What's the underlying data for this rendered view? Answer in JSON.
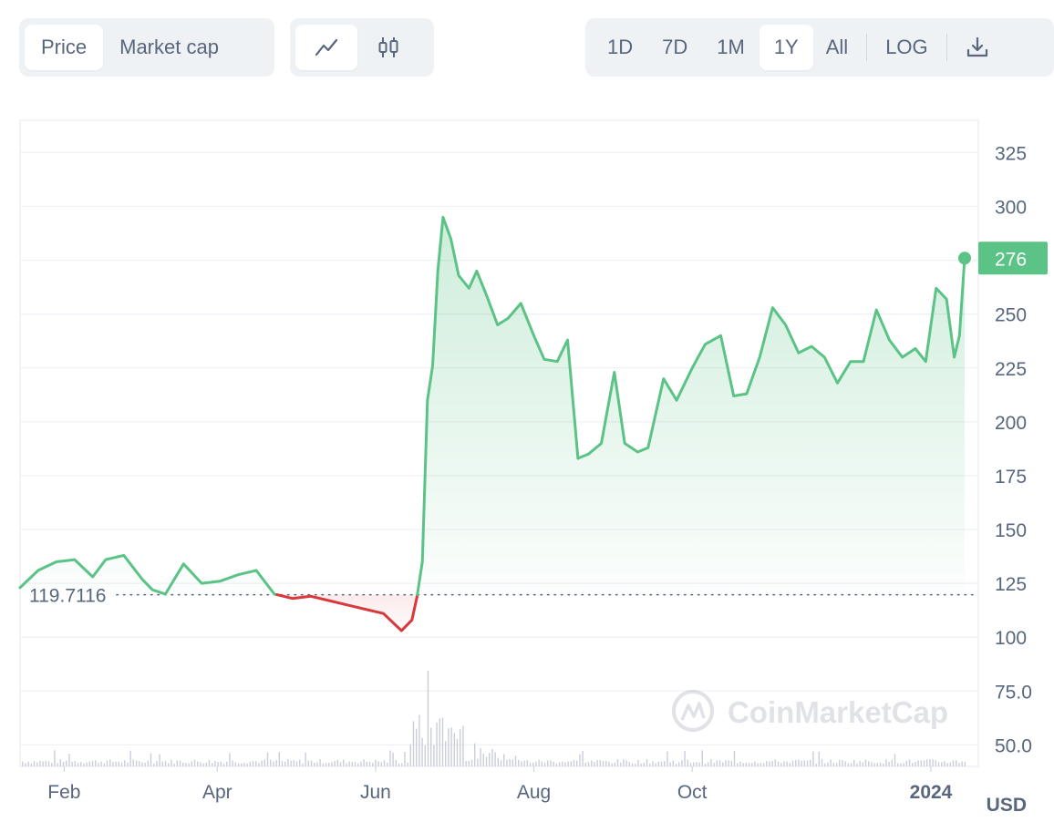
{
  "toolbar": {
    "data_type_tabs": [
      {
        "label": "Price",
        "active": true
      },
      {
        "label": "Market cap",
        "active": false
      }
    ],
    "chart_style_buttons": [
      {
        "icon": "line-chart-icon",
        "active": true
      },
      {
        "icon": "candlestick-icon",
        "active": false
      }
    ],
    "range_tabs": [
      {
        "label": "1D",
        "active": false
      },
      {
        "label": "7D",
        "active": false
      },
      {
        "label": "1M",
        "active": false
      },
      {
        "label": "1Y",
        "active": true
      },
      {
        "label": "All",
        "active": false
      }
    ],
    "log_label": "LOG",
    "download_icon": "download-icon"
  },
  "watermark": {
    "text": "CoinMarketCap",
    "icon": "coinmarketcap-logo-icon"
  },
  "currency_label": "USD",
  "colors": {
    "up": "#5bc386",
    "down": "#d9393c",
    "grid": "#eef1f5",
    "text": "#58667e",
    "badge_bg": "#5bc386"
  },
  "chart_data": {
    "type": "area",
    "x_tick_labels": [
      "Feb",
      "Apr",
      "Jun",
      "Aug",
      "Oct",
      "2024"
    ],
    "y_tick_labels": [
      "325",
      "300",
      "250",
      "225",
      "200",
      "175",
      "150",
      "125",
      "100",
      "75.0",
      "50.0"
    ],
    "ylim": [
      40,
      340
    ],
    "baseline": {
      "value": 119.7116,
      "label": "119.7116"
    },
    "current_value": {
      "value": 276,
      "label": "276"
    },
    "x_range": [
      "2023-01-15",
      "2024-01-14"
    ],
    "series": [
      {
        "x": [
          "2023-01-15",
          "2023-01-22",
          "2023-01-29",
          "2023-02-05",
          "2023-02-12",
          "2023-02-17",
          "2023-02-24",
          "2023-03-03",
          "2023-03-07",
          "2023-03-12",
          "2023-03-19",
          "2023-03-26",
          "2023-04-02",
          "2023-04-09",
          "2023-04-16",
          "2023-04-23",
          "2023-04-30",
          "2023-05-07",
          "2023-05-14",
          "2023-05-21",
          "2023-05-28",
          "2023-06-04",
          "2023-06-11",
          "2023-06-15",
          "2023-06-17",
          "2023-06-19",
          "2023-06-21",
          "2023-06-23",
          "2023-06-25",
          "2023-06-27",
          "2023-06-30",
          "2023-07-03",
          "2023-07-07",
          "2023-07-10",
          "2023-07-14",
          "2023-07-18",
          "2023-07-22",
          "2023-07-27",
          "2023-08-01",
          "2023-08-05",
          "2023-08-10",
          "2023-08-14",
          "2023-08-18",
          "2023-08-22",
          "2023-08-27",
          "2023-09-01",
          "2023-09-05",
          "2023-09-10",
          "2023-09-14",
          "2023-09-20",
          "2023-09-25",
          "2023-10-01",
          "2023-10-06",
          "2023-10-12",
          "2023-10-17",
          "2023-10-22",
          "2023-10-27",
          "2023-11-01",
          "2023-11-06",
          "2023-11-11",
          "2023-11-16",
          "2023-11-21",
          "2023-11-26",
          "2023-12-01",
          "2023-12-06",
          "2023-12-11",
          "2023-12-16",
          "2023-12-21",
          "2023-12-26",
          "2023-12-30",
          "2024-01-03",
          "2024-01-07",
          "2024-01-10",
          "2024-01-12",
          "2024-01-14"
        ],
        "y": [
          123,
          131,
          135,
          136,
          128,
          136,
          138,
          127,
          122,
          120,
          134,
          125,
          126,
          129,
          131,
          120,
          118,
          119,
          117,
          115,
          113,
          111,
          103,
          108,
          119,
          135,
          210,
          226,
          270,
          295,
          285,
          268,
          262,
          270,
          258,
          245,
          248,
          255,
          240,
          229,
          228,
          238,
          183,
          185,
          190,
          223,
          190,
          186,
          188,
          220,
          210,
          225,
          236,
          240,
          212,
          213,
          230,
          253,
          245,
          232,
          235,
          230,
          218,
          228,
          228,
          252,
          238,
          230,
          234,
          228,
          262,
          257,
          230,
          240,
          276
        ]
      }
    ]
  }
}
